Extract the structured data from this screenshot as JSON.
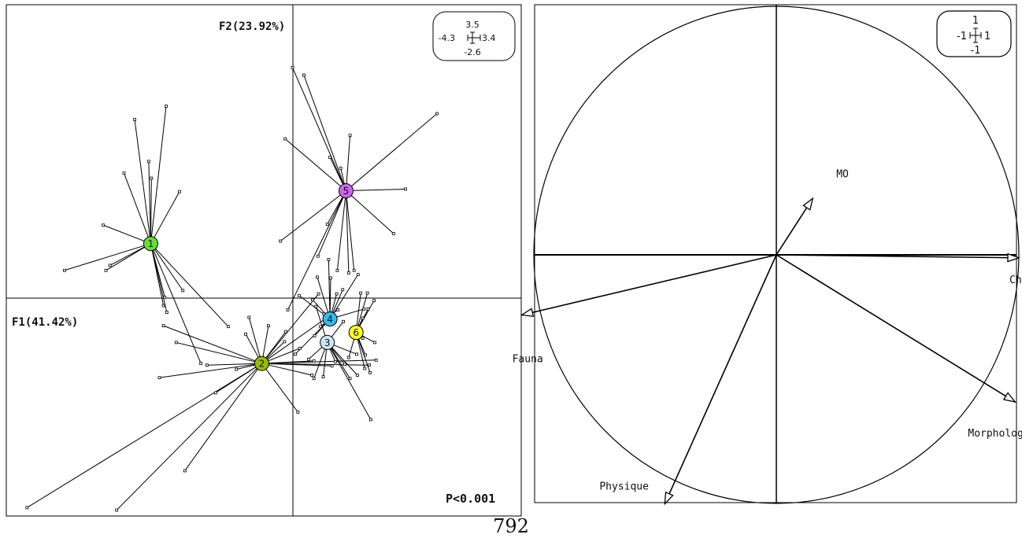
{
  "page_number": "792",
  "chart_data": [
    {
      "type": "scatter",
      "subtype": "between-class analysis (star plot of samples around class centroids)",
      "xlabel": "F1(41.42%)",
      "ylabel": "F2(23.92%)",
      "scale_box": {
        "top": "3.5",
        "left": "-4.3",
        "right": "3.4",
        "bottom": "-2.6"
      },
      "annotation": "P<0.001",
      "grid": false,
      "xlim": [
        -4.3,
        3.4
      ],
      "ylim": [
        -2.6,
        3.5
      ],
      "colors": {
        "1": "#66dd33",
        "2": "#99bb00",
        "3": "#cce6f5",
        "4": "#33bbee",
        "5": "#cc66ee",
        "6": "#ffff22"
      },
      "centroids": [
        {
          "label": "1",
          "x": -2.14,
          "y": 0.65
        },
        {
          "label": "2",
          "x": -0.48,
          "y": -0.78
        },
        {
          "label": "3",
          "x": 0.5,
          "y": -0.53
        },
        {
          "label": "4",
          "x": 0.54,
          "y": -0.25
        },
        {
          "label": "5",
          "x": 0.78,
          "y": 1.28
        },
        {
          "label": "6",
          "x": 0.93,
          "y": -0.41
        }
      ],
      "samples": [
        {
          "group": "1",
          "points": [
            [
              -2.38,
              2.13
            ],
            [
              -1.91,
              2.29
            ],
            [
              -2.17,
              1.63
            ],
            [
              -2.13,
              1.43
            ],
            [
              -2.54,
              1.49
            ],
            [
              -1.71,
              1.27
            ],
            [
              -2.85,
              0.87
            ],
            [
              -3.43,
              0.33
            ],
            [
              -2.75,
              0.39
            ],
            [
              -2.81,
              0.33
            ],
            [
              -1.93,
              0.01
            ],
            [
              -1.95,
              -0.09
            ],
            [
              -1.9,
              -0.17
            ],
            [
              -1.66,
              0.09
            ],
            [
              -0.98,
              -0.34
            ],
            [
              -1.39,
              -0.78
            ]
          ]
        },
        {
          "group": "2",
          "points": [
            [
              -1.95,
              -0.33
            ],
            [
              -0.38,
              -0.33
            ],
            [
              -1.76,
              -0.53
            ],
            [
              -0.67,
              -0.23
            ],
            [
              -0.72,
              -0.43
            ],
            [
              -1.3,
              -0.8
            ],
            [
              -0.86,
              -0.85
            ],
            [
              -2.01,
              -0.95
            ],
            [
              -1.17,
              -1.13
            ],
            [
              -1.63,
              -2.06
            ],
            [
              -3.99,
              -2.5
            ],
            [
              -2.65,
              -2.53
            ],
            [
              -0.14,
              -0.52
            ],
            [
              -0.12,
              -0.4
            ],
            [
              0.09,
              -0.6
            ],
            [
              0.3,
              -0.75
            ],
            [
              0.27,
              -0.92
            ],
            [
              0.06,
              -1.36
            ],
            [
              0.57,
              -0.81
            ],
            [
              1.13,
              -0.8
            ],
            [
              1.23,
              -0.74
            ],
            [
              0.66,
              -0.14
            ],
            [
              0.37,
              0.05
            ]
          ]
        },
        {
          "group": "3",
          "points": [
            [
              0.22,
              -0.73
            ],
            [
              0.3,
              -0.96
            ],
            [
              0.44,
              -0.94
            ],
            [
              0.62,
              -0.76
            ],
            [
              0.76,
              -0.79
            ],
            [
              0.84,
              -0.96
            ],
            [
              0.95,
              -0.92
            ],
            [
              0.74,
              -0.28
            ],
            [
              0.94,
              -0.67
            ],
            [
              1.15,
              -1.45
            ],
            [
              0.33,
              -0.1
            ]
          ]
        },
        {
          "group": "4",
          "points": [
            [
              0.08,
              0.03
            ],
            [
              0.28,
              -0.02
            ],
            [
              0.55,
              0.24
            ],
            [
              0.35,
              0.25
            ],
            [
              0.96,
              0.28
            ],
            [
              0.52,
              0.46
            ],
            [
              0.73,
              0.1
            ],
            [
              1.05,
              -0.13
            ],
            [
              0.31,
              -0.45
            ],
            [
              0.4,
              -0.34
            ],
            [
              0.64,
              0.05
            ],
            [
              0.45,
              -0.19
            ],
            [
              0.02,
              -0.67
            ]
          ]
        },
        {
          "group": "5",
          "points": [
            [
              -0.02,
              2.75
            ],
            [
              0.15,
              2.66
            ],
            [
              0.84,
              1.94
            ],
            [
              0.54,
              1.68
            ],
            [
              0.7,
              1.55
            ],
            [
              2.14,
              2.2
            ],
            [
              1.67,
              1.3
            ],
            [
              -0.13,
              1.9
            ],
            [
              1.49,
              0.77
            ],
            [
              -0.2,
              0.68
            ],
            [
              0.5,
              0.88
            ],
            [
              0.9,
              0.33
            ],
            [
              0.82,
              0.3
            ],
            [
              0.65,
              0.33
            ],
            [
              -0.09,
              -0.14
            ],
            [
              0.36,
              0.5
            ]
          ]
        },
        {
          "group": "6",
          "points": [
            [
              1.03,
              -0.24
            ],
            [
              1.11,
              -0.13
            ],
            [
              1.1,
              0.06
            ],
            [
              1.0,
              0.06
            ],
            [
              1.2,
              -0.03
            ],
            [
              0.82,
              -0.71
            ],
            [
              1.21,
              -0.53
            ],
            [
              1.07,
              -0.68
            ],
            [
              1.03,
              -0.48
            ],
            [
              1.14,
              -0.89
            ],
            [
              1.06,
              -0.84
            ]
          ]
        }
      ]
    },
    {
      "type": "correlation-circle",
      "scale_box": {
        "top": "1",
        "left": "-1",
        "right": "1",
        "bottom": "-1"
      },
      "xlim": [
        -1,
        1
      ],
      "ylim": [
        -1,
        1
      ],
      "variables": [
        {
          "name": "MO",
          "x": 0.15,
          "y": 0.227
        },
        {
          "name": "Chimique",
          "x": 1.0,
          "y": -0.012
        },
        {
          "name": "Fauna",
          "x": -1.05,
          "y": -0.242
        },
        {
          "name": "Morphology",
          "x": 0.985,
          "y": -0.592
        },
        {
          "name": "Physique",
          "x": -0.46,
          "y": -1.002
        }
      ]
    }
  ]
}
